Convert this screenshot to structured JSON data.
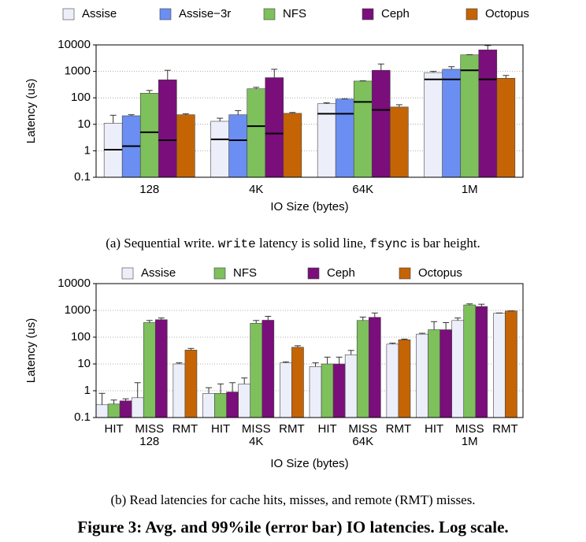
{
  "chart_data": [
    {
      "type": "bar",
      "log": true,
      "grid": true,
      "ylabel": "Latency (us)",
      "xlabel": "IO Size (bytes)",
      "categories": [
        "128",
        "4K",
        "64K",
        "1M"
      ],
      "ylim": [
        0.1,
        10000
      ],
      "yticks": [
        0.1,
        1,
        10,
        100,
        1000,
        10000
      ],
      "series": [
        {
          "name": "Assise",
          "color": "#eceefa",
          "values": [
            11,
            13,
            60,
            900
          ],
          "errors": [
            22,
            17,
            65,
            1000
          ],
          "write": [
            1.1,
            2.7,
            25,
            500
          ]
        },
        {
          "name": "Assise−3r",
          "color": "#6b8ef2",
          "values": [
            21,
            23,
            90,
            1200
          ],
          "errors": [
            23,
            33,
            92,
            1500
          ],
          "write": [
            1.5,
            2.5,
            25,
            500
          ]
        },
        {
          "name": "NFS",
          "color": "#7ec05c",
          "values": [
            150,
            220,
            430,
            4200
          ],
          "errors": [
            190,
            250,
            440,
            4300
          ],
          "write": [
            5,
            8.5,
            70,
            1100
          ]
        },
        {
          "name": "Ceph",
          "color": "#7a0e7a",
          "values": [
            480,
            580,
            1100,
            6500
          ],
          "errors": [
            1100,
            1200,
            1900,
            9500
          ],
          "write": [
            2.5,
            4.5,
            35,
            500
          ]
        },
        {
          "name": "Octopus",
          "color": "#c56405",
          "values": [
            23,
            26,
            45,
            550
          ],
          "errors": [
            25,
            28,
            55,
            700
          ]
        }
      ],
      "caption": [
        "(a) Sequential write. ",
        "write",
        " latency is solid line, ",
        "fsync",
        " is bar height."
      ]
    },
    {
      "type": "bar",
      "log": true,
      "grid": true,
      "ylabel": "Latency (us)",
      "xlabel": "IO Size (bytes)",
      "groups": [
        "128",
        "4K",
        "64K",
        "1M"
      ],
      "categories": [
        "HIT",
        "MISS",
        "RMT",
        "HIT",
        "MISS",
        "RMT",
        "HIT",
        "MISS",
        "RMT",
        "HIT",
        "MISS",
        "RMT"
      ],
      "ylim": [
        0.1,
        10000
      ],
      "yticks": [
        0.1,
        1,
        10,
        100,
        1000,
        10000
      ],
      "series": [
        {
          "name": "Assise",
          "color": "#eceefa",
          "values": [
            0.3,
            0.55,
            10,
            0.8,
            1.8,
            11,
            8,
            22,
            55,
            130,
            420,
            780
          ],
          "errors": [
            0.8,
            2,
            11,
            1.3,
            3,
            12,
            11,
            32,
            60,
            140,
            520,
            800
          ]
        },
        {
          "name": "NFS",
          "color": "#7ec05c",
          "values": [
            0.32,
            350,
            null,
            0.8,
            330,
            null,
            10,
            420,
            null,
            190,
            1600,
            null
          ],
          "errors": [
            0.45,
            420,
            null,
            1.8,
            420,
            null,
            18,
            560,
            null,
            380,
            1750,
            null
          ]
        },
        {
          "name": "Ceph",
          "color": "#7a0e7a",
          "values": [
            0.42,
            450,
            null,
            0.9,
            430,
            null,
            10,
            550,
            null,
            190,
            1400,
            null
          ],
          "errors": [
            0.5,
            520,
            null,
            2,
            600,
            null,
            18,
            800,
            null,
            350,
            1700,
            null
          ]
        },
        {
          "name": "Octopus",
          "color": "#c56405",
          "values": [
            null,
            null,
            33,
            null,
            null,
            42,
            null,
            null,
            80,
            null,
            null,
            950
          ],
          "errors": [
            null,
            null,
            38,
            null,
            null,
            48,
            null,
            null,
            85,
            null,
            null,
            960
          ]
        }
      ],
      "caption": [
        "(b) Read latencies for cache hits, misses, and remote (RMT) misses."
      ]
    }
  ],
  "figure_caption": "Figure 3: Avg. and 99%ile (error bar) IO latencies. Log scale."
}
